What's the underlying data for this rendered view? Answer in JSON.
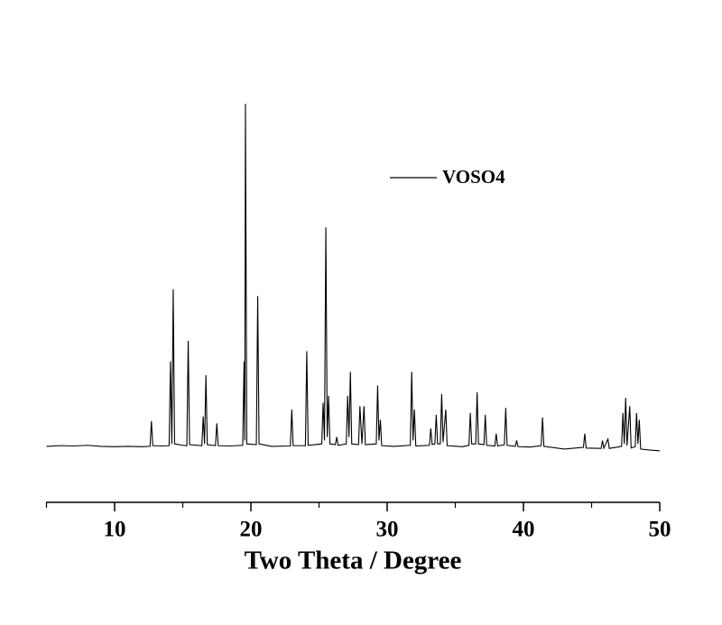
{
  "chart_data": {
    "type": "line",
    "xlabel": "Two Theta / Degree",
    "xlim": [
      5,
      50
    ],
    "xticks": [
      10,
      20,
      30,
      40,
      50
    ],
    "xminorticks": [
      5,
      15,
      25,
      35,
      45
    ],
    "ylim": [
      -16,
      100
    ],
    "legend": "top-right",
    "x": [
      5,
      6,
      7,
      8,
      9,
      10,
      11,
      12,
      12.6,
      12.7,
      12.8,
      13.5,
      14.0,
      14.1,
      14.2,
      14.3,
      14.4,
      15.0,
      15.3,
      15.4,
      15.5,
      16.4,
      16.5,
      16.6,
      16.7,
      16.8,
      17.4,
      17.5,
      17.6,
      18.5,
      19.4,
      19.5,
      19.55,
      19.6,
      19.7,
      20.4,
      20.5,
      20.6,
      21.5,
      22.9,
      23.0,
      23.1,
      24.0,
      24.1,
      24.2,
      25.2,
      25.3,
      25.4,
      25.5,
      25.6,
      25.7,
      25.8,
      26.2,
      26.3,
      26.4,
      27.0,
      27.1,
      27.2,
      27.3,
      27.4,
      27.9,
      28.0,
      28.15,
      28.3,
      28.4,
      29.2,
      29.3,
      29.4,
      29.5,
      29.6,
      30.5,
      31.7,
      31.8,
      31.9,
      32.0,
      32.1,
      33.1,
      33.2,
      33.3,
      33.5,
      33.6,
      33.7,
      33.9,
      34.0,
      34.1,
      34.3,
      34.4,
      35.5,
      36.0,
      36.1,
      36.2,
      36.5,
      36.6,
      36.7,
      37.1,
      37.2,
      37.3,
      37.9,
      38.0,
      38.1,
      38.6,
      38.7,
      38.8,
      39.4,
      39.5,
      39.6,
      40.5,
      41.3,
      41.4,
      41.5,
      43,
      44.4,
      44.5,
      44.6,
      45.7,
      45.8,
      45.9,
      46.2,
      46.3,
      47.2,
      47.3,
      47.4,
      47.5,
      47.6,
      47.8,
      47.9,
      48.2,
      48.3,
      48.4,
      48.5,
      48.6,
      49.3,
      50
    ],
    "series": [
      {
        "name": "VOSO4",
        "color": "#000000",
        "values": [
          0.3,
          0.5,
          0.4,
          0.6,
          0.3,
          0.2,
          0.3,
          0.2,
          0.3,
          7.6,
          0.5,
          0.4,
          0.5,
          25,
          1,
          46,
          1,
          0.6,
          0.5,
          31,
          0.8,
          0.5,
          9,
          1,
          21,
          0.8,
          0.5,
          7,
          0.5,
          0.4,
          0.6,
          25,
          2,
          100,
          1,
          0.8,
          44,
          1,
          0.3,
          0.4,
          11,
          0.5,
          0.5,
          28,
          0.6,
          1,
          13,
          2,
          64,
          3,
          15,
          1,
          0.8,
          3,
          0.6,
          1,
          15,
          3,
          22,
          1,
          0.8,
          12,
          1,
          12,
          0.8,
          1,
          18,
          2,
          8,
          0.5,
          0.3,
          0.6,
          22,
          2,
          11,
          0.4,
          0.6,
          5.5,
          0.8,
          1,
          9.5,
          1,
          1,
          15.5,
          1.5,
          11,
          0.5,
          0.2,
          0.6,
          10,
          1,
          1,
          16,
          1,
          0.8,
          9.5,
          0.6,
          0.4,
          4,
          0.4,
          0.8,
          11.5,
          0.6,
          0.3,
          2,
          0.2,
          0.1,
          0.5,
          8.7,
          0.3,
          -0.5,
          0,
          4,
          -0.2,
          -0.3,
          2,
          -0.2,
          2.4,
          -0.3,
          0.3,
          10,
          1,
          14.4,
          0.5,
          12,
          -0.2,
          0.2,
          10,
          1,
          8,
          -0.5,
          -0.8,
          -1
        ]
      }
    ]
  }
}
